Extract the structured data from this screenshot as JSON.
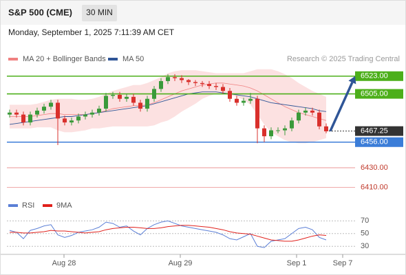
{
  "header": {
    "symbol": "S&P 500 (CME)",
    "interval": "30 MIN",
    "timestamp": "Monday, September 1, 2025 7:11:39 AM CET"
  },
  "chart_data": [
    {
      "type": "candlestick",
      "legend": [
        "MA 20 + Bollinger Bands",
        "MA 50"
      ],
      "legend_colors": [
        "#f08080",
        "#2f5597"
      ],
      "credit": "Research © 2025 Trading Central",
      "xlim": [
        0,
        50
      ],
      "ylim": [
        6400,
        6534
      ],
      "xticks": [
        {
          "value": 7.9,
          "label": "Aug 28"
        },
        {
          "value": 24.8,
          "label": "Aug 29"
        },
        {
          "value": 41.7,
          "label": "Sep 1"
        },
        {
          "value": 48.4,
          "label": "Sep 7"
        }
      ],
      "open": [
        6484,
        6486,
        6484,
        6476,
        6484,
        6488,
        6492,
        6496,
        6480,
        6476,
        6478,
        6482,
        6484,
        6486,
        6490,
        6503,
        6504,
        6500,
        6502,
        6496,
        6490,
        6500,
        6510,
        6518,
        6522,
        6521,
        6519,
        6517,
        6516,
        6515,
        6513,
        6512,
        6508,
        6500,
        6496,
        6498,
        6500,
        6470,
        6462,
        6468,
        6468,
        6470,
        6478,
        6486,
        6488,
        6486,
        6472
      ],
      "high": [
        6489,
        6489,
        6487,
        6487,
        6491,
        6495,
        6499,
        6499,
        6483,
        6481,
        6485,
        6487,
        6489,
        6493,
        6506,
        6507,
        6507,
        6505,
        6505,
        6499,
        6503,
        6513,
        6521,
        6525,
        6525,
        6524,
        6520,
        6519,
        6518,
        6518,
        6516,
        6515,
        6511,
        6503,
        6501,
        6506,
        6503,
        6473,
        6471,
        6471,
        6473,
        6481,
        6489,
        6491,
        6491,
        6489,
        6475
      ],
      "low": [
        6481,
        6481,
        6473,
        6473,
        6481,
        6485,
        6489,
        6453,
        6473,
        6473,
        6475,
        6479,
        6481,
        6483,
        6487,
        6500,
        6497,
        6497,
        6493,
        6487,
        6487,
        6497,
        6507,
        6515,
        6518,
        6516,
        6514,
        6513,
        6512,
        6510,
        6509,
        6505,
        6497,
        6493,
        6493,
        6495,
        6455,
        6456,
        6459,
        6465,
        6463,
        6467,
        6475,
        6483,
        6483,
        6469,
        6465
      ],
      "close": [
        6486,
        6484,
        6476,
        6484,
        6488,
        6492,
        6496,
        6480,
        6476,
        6478,
        6482,
        6484,
        6486,
        6490,
        6503,
        6504,
        6500,
        6502,
        6496,
        6490,
        6500,
        6510,
        6518,
        6522,
        6521,
        6519,
        6517,
        6516,
        6515,
        6513,
        6512,
        6508,
        6500,
        6496,
        6498,
        6500,
        6470,
        6462,
        6468,
        6468,
        6470,
        6478,
        6486,
        6488,
        6486,
        6472,
        6467
      ],
      "up_color": "#3a9a3a",
      "down_color": "#d9302c",
      "ma20": [
        6482,
        6482,
        6482,
        6482,
        6483,
        6484,
        6485,
        6485,
        6484,
        6484,
        6484,
        6484,
        6485,
        6486,
        6488,
        6490,
        6491,
        6492,
        6493,
        6493,
        6494,
        6496,
        6499,
        6502,
        6505,
        6508,
        6510,
        6512,
        6514,
        6515,
        6516,
        6516,
        6515,
        6514,
        6513,
        6511,
        6508,
        6504,
        6500,
        6496,
        6492,
        6489,
        6486,
        6484,
        6482,
        6480,
        6478
      ],
      "bb_upper": [
        6494,
        6494,
        6494,
        6494,
        6495,
        6497,
        6499,
        6500,
        6500,
        6500,
        6499,
        6499,
        6500,
        6502,
        6505,
        6508,
        6510,
        6512,
        6514,
        6514,
        6516,
        6519,
        6522,
        6526,
        6528,
        6529,
        6529,
        6529,
        6528,
        6527,
        6526,
        6526,
        6526,
        6526,
        6526,
        6528,
        6530,
        6530,
        6530,
        6528,
        6525,
        6521,
        6516,
        6512,
        6508,
        6505,
        6502
      ],
      "bb_lower": [
        6470,
        6470,
        6470,
        6470,
        6471,
        6471,
        6471,
        6468,
        6466,
        6466,
        6467,
        6468,
        6470,
        6470,
        6471,
        6472,
        6472,
        6472,
        6472,
        6472,
        6472,
        6473,
        6476,
        6478,
        6482,
        6487,
        6491,
        6495,
        6500,
        6503,
        6505,
        6505,
        6504,
        6502,
        6499,
        6494,
        6484,
        6474,
        6466,
        6462,
        6458,
        6456,
        6455,
        6455,
        6456,
        6458,
        6460
      ],
      "ma50": [
        6474,
        6475,
        6476,
        6477,
        6478,
        6479,
        6480,
        6481,
        6482,
        6482,
        6483,
        6484,
        6485,
        6486,
        6487,
        6488,
        6489,
        6490,
        6491,
        6492,
        6493,
        6495,
        6497,
        6499,
        6501,
        6503,
        6505,
        6506,
        6507,
        6507,
        6507,
        6506,
        6505,
        6504,
        6503,
        6502,
        6500,
        6498,
        6496,
        6495,
        6494,
        6493,
        6492,
        6491,
        6490,
        6488,
        6487
      ],
      "levels": [
        {
          "value": 6523,
          "label": "6523.00",
          "color": "#4caf1a",
          "style": "solid"
        },
        {
          "value": 6505,
          "label": "6505.00",
          "color": "#4caf1a",
          "style": "solid"
        },
        {
          "value": 6467.25,
          "label": "6467.25",
          "color": "#333333",
          "style": "dotted"
        },
        {
          "value": 6456,
          "label": "6456.00",
          "color": "#3b7dd8",
          "style": "solid"
        },
        {
          "value": 6430,
          "label": "6430.00",
          "color": "#e57373",
          "style": "thin"
        },
        {
          "value": 6410,
          "label": "6410.00",
          "color": "#e57373",
          "style": "thin"
        }
      ],
      "arrow": {
        "from": [
          46.6,
          6467.25
        ],
        "to": [
          50.2,
          6523
        ],
        "color": "#2f5597"
      }
    },
    {
      "type": "line",
      "legend": [
        "RSI",
        "9MA"
      ],
      "xlim": [
        0,
        50
      ],
      "ylim": [
        20,
        80
      ],
      "yticks": [
        70,
        50,
        30
      ],
      "series": [
        {
          "name": "RSI",
          "color": "#5b7fd6",
          "values": [
            55,
            52,
            42,
            55,
            58,
            62,
            64,
            48,
            44,
            47,
            52,
            54,
            56,
            60,
            68,
            66,
            60,
            62,
            54,
            48,
            58,
            64,
            68,
            70,
            66,
            62,
            60,
            58,
            56,
            54,
            52,
            48,
            42,
            40,
            45,
            50,
            30,
            28,
            38,
            40,
            42,
            50,
            58,
            60,
            56,
            44,
            40
          ]
        },
        {
          "name": "9MA",
          "color": "#e0201b",
          "values": [
            52,
            52,
            51,
            51,
            52,
            53,
            55,
            54,
            54,
            53,
            52,
            51,
            52,
            53,
            56,
            58,
            59,
            60,
            60,
            59,
            58,
            58,
            59,
            61,
            62,
            63,
            63,
            62,
            61,
            60,
            58,
            56,
            53,
            51,
            50,
            49,
            46,
            43,
            40,
            39,
            38,
            38,
            40,
            43,
            46,
            48,
            47
          ]
        }
      ]
    }
  ]
}
